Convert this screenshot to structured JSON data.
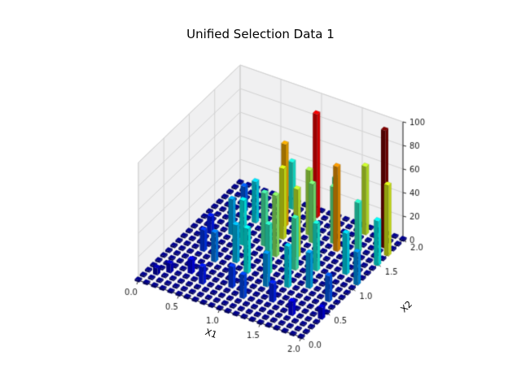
{
  "chart_data": {
    "type": "bar3d",
    "title": "Unified Selection Data 1",
    "xlabel": "X1",
    "ylabel": "X2",
    "xlim": [
      0,
      2
    ],
    "ylim": [
      0,
      2
    ],
    "zlim": [
      0,
      100
    ],
    "xtick_labels": [
      "0.0",
      "0.5",
      "1.0",
      "1.5",
      "2.0"
    ],
    "ytick_labels": [
      "0.0",
      "0.5",
      "1.0",
      "1.5",
      "2.0"
    ],
    "ztick_labels": [
      "0",
      "20",
      "40",
      "60",
      "80",
      "100"
    ],
    "colormap": "jet",
    "grid": "on",
    "base_grid": {
      "x_min": 0,
      "x_max": 2,
      "y_min": 0,
      "y_max": 2,
      "step": 0.1,
      "height": 1.5
    },
    "bar_size": 0.055,
    "bars": [
      [
        0.1,
        0.2,
        6
      ],
      [
        0.2,
        0.3,
        8
      ],
      [
        0.4,
        0.4,
        12
      ],
      [
        0.6,
        0.3,
        15
      ],
      [
        0.9,
        0.4,
        18
      ],
      [
        1.1,
        0.3,
        20
      ],
      [
        1.4,
        0.4,
        16
      ],
      [
        1.7,
        0.3,
        12
      ],
      [
        2.0,
        0.4,
        10
      ],
      [
        0.3,
        0.8,
        18
      ],
      [
        0.5,
        0.7,
        25
      ],
      [
        0.7,
        0.8,
        32
      ],
      [
        0.9,
        0.7,
        38
      ],
      [
        1.1,
        0.8,
        42
      ],
      [
        1.2,
        0.6,
        28
      ],
      [
        1.4,
        0.7,
        35
      ],
      [
        1.6,
        0.8,
        30
      ],
      [
        1.9,
        0.7,
        22
      ],
      [
        0.2,
        1.1,
        15
      ],
      [
        0.4,
        1.2,
        30
      ],
      [
        0.6,
        1.1,
        38
      ],
      [
        0.8,
        1.2,
        45
      ],
      [
        1.0,
        1.1,
        52
      ],
      [
        1.2,
        1.2,
        58
      ],
      [
        1.3,
        1.0,
        44
      ],
      [
        1.5,
        1.1,
        40
      ],
      [
        1.8,
        1.2,
        35
      ],
      [
        2.0,
        1.1,
        28
      ],
      [
        0.3,
        1.6,
        22
      ],
      [
        0.5,
        1.5,
        35
      ],
      [
        0.8,
        1.6,
        70
      ],
      [
        0.9,
        1.4,
        60
      ],
      [
        1.1,
        1.6,
        55
      ],
      [
        1.2,
        1.5,
        50
      ],
      [
        1.4,
        1.6,
        48
      ],
      [
        1.5,
        1.5,
        72
      ],
      [
        1.7,
        1.6,
        42
      ],
      [
        2.0,
        1.5,
        38
      ],
      [
        0.7,
        1.9,
        40
      ],
      [
        1.0,
        1.9,
        88
      ],
      [
        1.3,
        1.8,
        45
      ],
      [
        1.6,
        1.9,
        58
      ],
      [
        1.9,
        1.8,
        100
      ],
      [
        2.0,
        1.7,
        60
      ]
    ]
  },
  "colors": {
    "background": "#ffffff",
    "pane": "#f0f0f1",
    "floor": "#f7f7f7",
    "grid_line": "#d2d2d2",
    "pane_edge": "#dcdcdc",
    "axis_line": "#2f2f2f",
    "tick_text": "#1a1a1a",
    "base_bar": "#000080",
    "max_bar": "#800000"
  }
}
